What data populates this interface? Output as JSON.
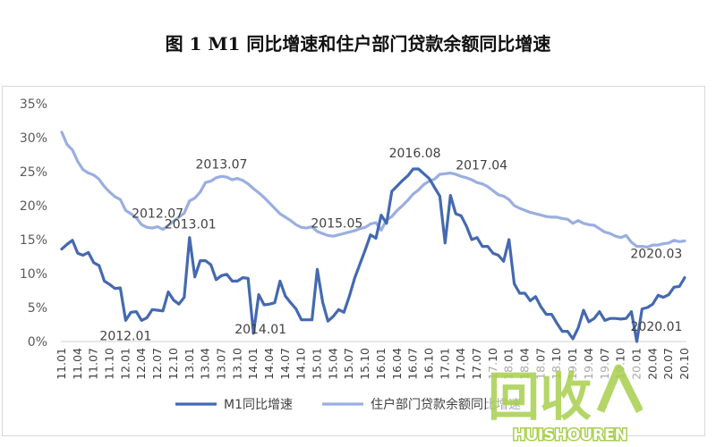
{
  "page": {
    "title": "图 1    M1 同比增速和住户部门贷款余额同比增速"
  },
  "watermark": {
    "big_text": "回收",
    "small_text": "HUISHOUREN"
  },
  "chart_data": {
    "type": "line",
    "title": "图 1    M1 同比增速和住户部门贷款余额同比增速",
    "ylim": [
      0,
      35
    ],
    "ytick_values": [
      0,
      5,
      10,
      15,
      20,
      25,
      30,
      35
    ],
    "ytick_labels": [
      "0%",
      "5%",
      "10%",
      "15%",
      "20%",
      "25%",
      "30%",
      "35%"
    ],
    "x_tick_labels": [
      "11.01",
      "11.04",
      "11.07",
      "11.10",
      "12.01",
      "12.04",
      "12.07",
      "12.10",
      "13.01",
      "13.04",
      "13.07",
      "13.10",
      "14.01",
      "14.04",
      "14.07",
      "14.10",
      "15.01",
      "15.04",
      "15.07",
      "15.10",
      "16.01",
      "16.04",
      "16.07",
      "16.10",
      "17.01",
      "17.04",
      "17.07",
      "17.10",
      "18.01",
      "18.04",
      "18.07",
      "18.10",
      "19.01",
      "19.04",
      "19.07",
      "19.10",
      "20.01",
      "20.04",
      "20.07",
      "20.10"
    ],
    "grid": false,
    "legend_position": "bottom",
    "series": [
      {
        "name": "M1同比增速",
        "color": "#4469b0",
        "values": [
          13.6,
          14.3,
          14.9,
          13.0,
          12.7,
          13.1,
          11.6,
          11.2,
          8.9,
          8.4,
          7.8,
          7.9,
          3.1,
          4.3,
          4.4,
          3.1,
          3.5,
          4.7,
          4.6,
          4.5,
          7.3,
          6.1,
          5.5,
          6.5,
          15.3,
          9.5,
          11.9,
          11.9,
          11.3,
          9.1,
          9.7,
          9.9,
          8.9,
          8.9,
          9.4,
          9.3,
          1.2,
          6.9,
          5.4,
          5.5,
          5.7,
          8.9,
          6.7,
          5.7,
          4.8,
          3.2,
          3.2,
          3.2,
          10.6,
          5.8,
          3.0,
          3.7,
          4.7,
          4.3,
          6.6,
          9.3,
          11.4,
          13.5,
          15.7,
          15.2,
          18.6,
          17.4,
          22.1,
          22.9,
          23.7,
          24.4,
          25.4,
          25.4,
          24.7,
          24.0,
          22.7,
          21.4,
          14.5,
          21.5,
          18.8,
          18.5,
          17.0,
          15.0,
          15.3,
          14.0,
          14.0,
          13.0,
          12.7,
          11.8,
          15.0,
          8.5,
          7.1,
          7.1,
          6.0,
          6.6,
          5.1,
          4.0,
          4.0,
          2.7,
          1.5,
          1.5,
          0.4,
          2.0,
          4.6,
          2.9,
          3.4,
          4.4,
          3.1,
          3.4,
          3.4,
          3.3,
          3.4,
          4.4,
          0.0,
          4.8,
          5.0,
          5.5,
          6.8,
          6.5,
          6.9,
          8.0,
          8.1,
          9.4
        ]
      },
      {
        "name": "住户部门贷款余额同比增速",
        "color": "#9aaee0",
        "values": [
          30.8,
          29.0,
          28.2,
          26.5,
          25.3,
          24.8,
          24.5,
          23.9,
          22.8,
          22.0,
          21.3,
          20.9,
          19.3,
          18.8,
          18.2,
          17.2,
          16.8,
          16.7,
          16.9,
          16.5,
          17.1,
          17.7,
          18.3,
          18.9,
          20.7,
          21.1,
          22.0,
          23.4,
          23.6,
          24.1,
          24.3,
          24.2,
          23.8,
          24.0,
          23.7,
          23.2,
          22.5,
          21.9,
          21.2,
          20.4,
          19.6,
          18.8,
          18.3,
          17.8,
          17.2,
          16.8,
          16.7,
          16.9,
          16.2,
          15.9,
          15.6,
          15.5,
          15.7,
          15.9,
          16.1,
          16.3,
          16.6,
          16.8,
          17.3,
          17.5,
          16.4,
          17.9,
          18.4,
          19.3,
          20.0,
          20.8,
          21.7,
          22.3,
          23.1,
          23.6,
          23.9,
          24.6,
          24.7,
          24.8,
          24.6,
          24.3,
          24.1,
          23.8,
          23.4,
          23.2,
          22.8,
          22.2,
          21.6,
          21.4,
          20.9,
          20.0,
          19.6,
          19.3,
          19.0,
          18.8,
          18.6,
          18.4,
          18.3,
          18.3,
          18.1,
          18.0,
          17.4,
          17.8,
          17.4,
          17.2,
          17.1,
          16.6,
          16.1,
          15.9,
          15.5,
          15.3,
          15.6,
          14.6,
          14.0,
          14.0,
          13.9,
          14.2,
          14.2,
          14.4,
          14.5,
          14.9,
          14.7,
          14.8
        ]
      }
    ],
    "annotations": [
      {
        "text": "2012.01",
        "series": 0,
        "index": 12
      },
      {
        "text": "2012.07",
        "series": 1,
        "index": 18
      },
      {
        "text": "2013.01",
        "series": 0,
        "index": 24
      },
      {
        "text": "2013.07",
        "series": 1,
        "index": 30
      },
      {
        "text": "2014.01",
        "series": 0,
        "index": 36
      },
      {
        "text": "2015.05",
        "series": 1,
        "index": 52
      },
      {
        "text": "2016.08",
        "series": 0,
        "index": 67
      },
      {
        "text": "2017.04",
        "series": 1,
        "index": 75
      },
      {
        "text": "2020.01",
        "series": 0,
        "index": 108
      },
      {
        "text": "2020.03",
        "series": 1,
        "index": 110
      }
    ]
  }
}
